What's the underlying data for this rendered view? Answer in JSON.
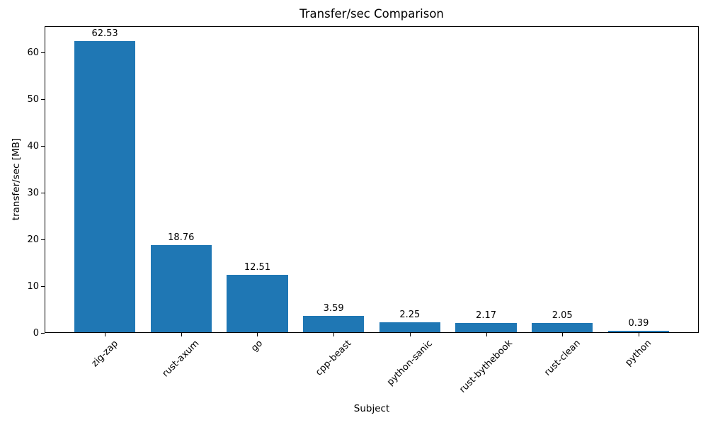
{
  "chart_data": {
    "type": "bar",
    "title": "Transfer/sec Comparison",
    "xlabel": "Subject",
    "ylabel": "transfer/sec [MB]",
    "categories": [
      "zig-zap",
      "rust-axum",
      "go",
      "cpp-beast",
      "python-sanic",
      "rust-bythebook",
      "rust-clean",
      "python"
    ],
    "values": [
      62.53,
      18.76,
      12.51,
      3.59,
      2.25,
      2.17,
      2.05,
      0.39
    ],
    "bar_labels": [
      "62.53",
      "18.76",
      "12.51",
      "3.59",
      "2.25",
      "2.17",
      "2.05",
      "0.39"
    ],
    "yticks": [
      0,
      10,
      20,
      30,
      40,
      50,
      60
    ],
    "ylim": [
      0,
      65.66
    ],
    "bar_width": 0.8,
    "bar_color": "#1f77b4",
    "axis_color": "#000000",
    "text_color": "#000000",
    "background_color": "#ffffff",
    "grid": false,
    "legend": null,
    "xtick_rotation_deg": 45
  }
}
